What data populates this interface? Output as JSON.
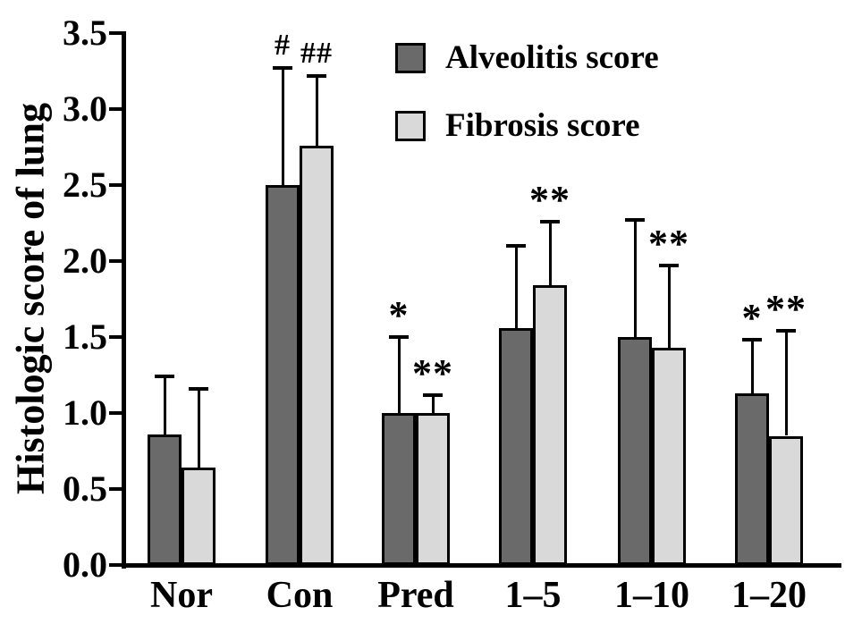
{
  "figure": {
    "background": "#ffffff",
    "text_color": "#000000"
  },
  "chart_data": {
    "type": "bar",
    "title": "",
    "xlabel": "",
    "ylabel": "Histologic score of lung",
    "ylim": [
      0,
      3.5
    ],
    "ytick_step": 0.5,
    "ytick_labels": [
      "0.0",
      "0.5",
      "1.0",
      "1.5",
      "2.0",
      "2.5",
      "3.0",
      "3.5"
    ],
    "grid": false,
    "legend_position": "top-center-inside",
    "error_bars": "upper-sd",
    "categories": [
      "Nor",
      "Con",
      "Pred",
      "1–5",
      "1–10",
      "1–20"
    ],
    "series": [
      {
        "name": "Alveolitis score",
        "color": "#6a6a6a",
        "values": [
          0.86,
          2.5,
          1.0,
          1.56,
          1.5,
          1.13
        ],
        "errors_up": [
          0.38,
          0.77,
          0.5,
          0.54,
          0.77,
          0.35
        ],
        "annotations": [
          "",
          "#",
          "*",
          "",
          "",
          "*"
        ]
      },
      {
        "name": "Fibrosis score",
        "color": "#d9d9d9",
        "values": [
          0.64,
          2.76,
          1.0,
          1.84,
          1.43,
          0.85
        ],
        "errors_up": [
          0.52,
          0.46,
          0.12,
          0.42,
          0.54,
          0.69
        ],
        "annotations": [
          "",
          "##",
          "**",
          "**",
          "**",
          "**"
        ]
      }
    ]
  }
}
